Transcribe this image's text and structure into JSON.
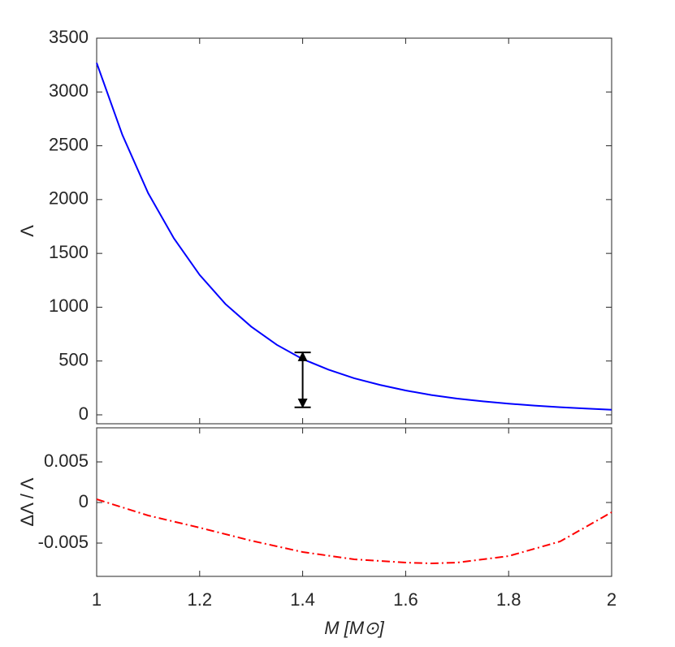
{
  "chart_data": [
    {
      "type": "line",
      "ylabel": "Λ",
      "x": [
        1.0,
        1.05,
        1.1,
        1.15,
        1.2,
        1.25,
        1.3,
        1.35,
        1.4,
        1.45,
        1.5,
        1.55,
        1.6,
        1.65,
        1.7,
        1.75,
        1.8,
        1.85,
        1.9,
        1.95,
        2.0
      ],
      "series": [
        {
          "color": "#0000ff",
          "style": "solid",
          "values": [
            3270,
            2600,
            2060,
            1640,
            1300,
            1030,
            820,
            650,
            518,
            420,
            340,
            278,
            226,
            184,
            151,
            125,
            104,
            86,
            71,
            58,
            47
          ]
        }
      ],
      "errorbar": {
        "x": 1.4,
        "low": 70,
        "high": 580,
        "color": "#000000"
      },
      "xlim": [
        1,
        2
      ],
      "xticks": [
        1,
        1.2,
        1.4,
        1.6,
        1.8,
        2
      ],
      "ylim": [
        -83,
        3500
      ],
      "yticks": [
        0,
        500,
        1000,
        1500,
        2000,
        2500,
        3000,
        3500
      ]
    },
    {
      "type": "line",
      "ylabel": "ΔΛ / Λ",
      "xlabel": "M [M⊙]",
      "x": [
        1.0,
        1.1,
        1.2,
        1.3,
        1.4,
        1.5,
        1.6,
        1.65,
        1.7,
        1.8,
        1.9,
        2.0
      ],
      "series": [
        {
          "color": "#ff0000",
          "style": "dashdot",
          "values": [
            0.0004,
            -0.0016,
            -0.0031,
            -0.0047,
            -0.0061,
            -0.007,
            -0.0074,
            -0.0075,
            -0.0074,
            -0.0066,
            -0.0048,
            -0.0012
          ]
        }
      ],
      "xlim": [
        1,
        2
      ],
      "xticks": [
        1,
        1.2,
        1.4,
        1.6,
        1.8,
        2
      ],
      "ylim": [
        -0.0091,
        0.0092
      ],
      "yticks": [
        -0.005,
        0,
        0.005
      ]
    }
  ]
}
